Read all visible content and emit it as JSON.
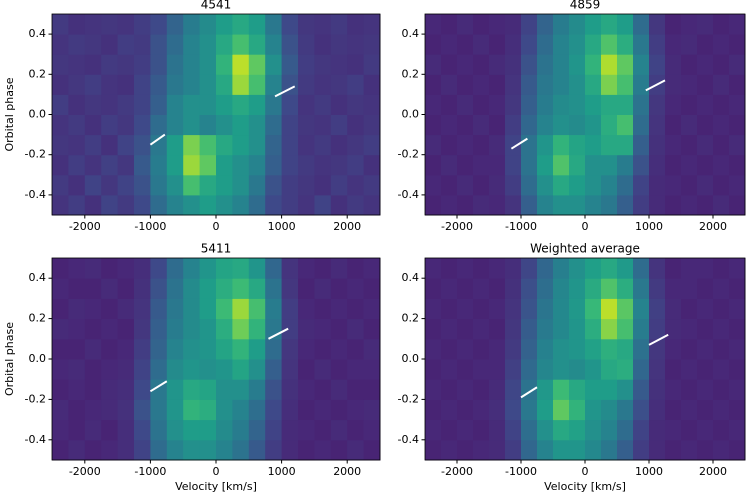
{
  "chart_data": [
    {
      "type": "heatmap",
      "title": "4541",
      "ylabel": "Orbital phase",
      "colormap": "viridis",
      "xlim": [
        -2500,
        2500
      ],
      "ylim": [
        -0.5,
        0.5
      ],
      "xticks": [
        -2000,
        -1000,
        0,
        1000,
        2000
      ],
      "yticks": [
        -0.4,
        -0.2,
        0.0,
        0.2,
        0.4
      ],
      "z": [
        [
          0.15,
          0.18,
          0.14,
          0.2,
          0.17,
          0.22,
          0.35,
          0.45,
          0.5,
          0.55,
          0.5,
          0.45,
          0.35,
          0.22,
          0.18,
          0.15,
          0.2,
          0.14,
          0.17,
          0.15
        ],
        [
          0.17,
          0.14,
          0.2,
          0.16,
          0.2,
          0.25,
          0.4,
          0.5,
          0.7,
          0.6,
          0.55,
          0.5,
          0.4,
          0.25,
          0.18,
          0.16,
          0.14,
          0.18,
          0.15,
          0.17
        ],
        [
          0.14,
          0.18,
          0.15,
          0.19,
          0.16,
          0.28,
          0.42,
          0.55,
          0.85,
          0.75,
          0.55,
          0.5,
          0.45,
          0.3,
          0.2,
          0.17,
          0.15,
          0.16,
          0.18,
          0.14
        ],
        [
          0.16,
          0.15,
          0.18,
          0.14,
          0.2,
          0.25,
          0.4,
          0.55,
          0.8,
          0.7,
          0.6,
          0.55,
          0.5,
          0.32,
          0.2,
          0.15,
          0.17,
          0.14,
          0.16,
          0.18
        ],
        [
          0.15,
          0.17,
          0.14,
          0.18,
          0.16,
          0.22,
          0.35,
          0.45,
          0.5,
          0.45,
          0.5,
          0.55,
          0.5,
          0.35,
          0.2,
          0.16,
          0.15,
          0.18,
          0.14,
          0.16
        ],
        [
          0.18,
          0.14,
          0.16,
          0.15,
          0.17,
          0.2,
          0.3,
          0.45,
          0.5,
          0.5,
          0.55,
          0.6,
          0.55,
          0.4,
          0.22,
          0.15,
          0.17,
          0.14,
          0.16,
          0.15
        ],
        [
          0.14,
          0.16,
          0.18,
          0.15,
          0.14,
          0.2,
          0.28,
          0.4,
          0.45,
          0.5,
          0.6,
          0.85,
          0.7,
          0.45,
          0.25,
          0.17,
          0.15,
          0.16,
          0.18,
          0.14
        ],
        [
          0.16,
          0.15,
          0.14,
          0.17,
          0.16,
          0.18,
          0.25,
          0.38,
          0.45,
          0.5,
          0.65,
          0.9,
          0.75,
          0.5,
          0.28,
          0.18,
          0.16,
          0.15,
          0.14,
          0.17
        ],
        [
          0.15,
          0.17,
          0.16,
          0.14,
          0.18,
          0.17,
          0.25,
          0.35,
          0.45,
          0.5,
          0.6,
          0.7,
          0.6,
          0.45,
          0.25,
          0.17,
          0.14,
          0.16,
          0.15,
          0.16
        ],
        [
          0.17,
          0.14,
          0.15,
          0.16,
          0.15,
          0.18,
          0.22,
          0.32,
          0.42,
          0.48,
          0.55,
          0.6,
          0.55,
          0.4,
          0.22,
          0.16,
          0.15,
          0.17,
          0.14,
          0.15
        ]
      ],
      "annotation_lines": [
        {
          "x": [
            -1000,
            -780
          ],
          "y": [
            -0.15,
            -0.1
          ]
        },
        {
          "x": [
            900,
            1200
          ],
          "y": [
            0.09,
            0.14
          ]
        }
      ]
    },
    {
      "type": "heatmap",
      "title": "4859",
      "colormap": "viridis",
      "xlim": [
        -2500,
        2500
      ],
      "ylim": [
        -0.5,
        0.5
      ],
      "xticks": [
        -2000,
        -1000,
        0,
        1000,
        2000
      ],
      "yticks": [
        -0.4,
        -0.2,
        0.0,
        0.2,
        0.4
      ],
      "z": [
        [
          0.1,
          0.11,
          0.1,
          0.12,
          0.11,
          0.15,
          0.3,
          0.45,
          0.5,
          0.5,
          0.45,
          0.4,
          0.3,
          0.18,
          0.12,
          0.1,
          0.11,
          0.1,
          0.12,
          0.1
        ],
        [
          0.11,
          0.1,
          0.12,
          0.1,
          0.12,
          0.18,
          0.35,
          0.5,
          0.6,
          0.55,
          0.5,
          0.45,
          0.35,
          0.2,
          0.12,
          0.11,
          0.1,
          0.12,
          0.1,
          0.11
        ],
        [
          0.1,
          0.12,
          0.1,
          0.11,
          0.11,
          0.2,
          0.38,
          0.55,
          0.72,
          0.6,
          0.5,
          0.5,
          0.42,
          0.25,
          0.13,
          0.1,
          0.11,
          0.1,
          0.11,
          0.1
        ],
        [
          0.12,
          0.1,
          0.11,
          0.1,
          0.12,
          0.2,
          0.38,
          0.52,
          0.65,
          0.58,
          0.55,
          0.6,
          0.6,
          0.3,
          0.14,
          0.11,
          0.1,
          0.12,
          0.1,
          0.12
        ],
        [
          0.1,
          0.11,
          0.1,
          0.12,
          0.1,
          0.18,
          0.33,
          0.45,
          0.5,
          0.48,
          0.52,
          0.62,
          0.7,
          0.35,
          0.15,
          0.1,
          0.12,
          0.1,
          0.11,
          0.1
        ],
        [
          0.11,
          0.1,
          0.12,
          0.1,
          0.11,
          0.16,
          0.3,
          0.42,
          0.48,
          0.5,
          0.55,
          0.6,
          0.6,
          0.38,
          0.16,
          0.11,
          0.1,
          0.11,
          0.1,
          0.11
        ],
        [
          0.1,
          0.12,
          0.1,
          0.11,
          0.1,
          0.15,
          0.28,
          0.4,
          0.45,
          0.5,
          0.6,
          0.8,
          0.7,
          0.42,
          0.18,
          0.12,
          0.11,
          0.1,
          0.12,
          0.1
        ],
        [
          0.12,
          0.1,
          0.11,
          0.1,
          0.12,
          0.14,
          0.25,
          0.38,
          0.45,
          0.52,
          0.65,
          0.88,
          0.75,
          0.45,
          0.2,
          0.12,
          0.1,
          0.11,
          0.1,
          0.12
        ],
        [
          0.1,
          0.11,
          0.1,
          0.12,
          0.1,
          0.13,
          0.22,
          0.35,
          0.45,
          0.5,
          0.6,
          0.72,
          0.62,
          0.4,
          0.18,
          0.11,
          0.12,
          0.1,
          0.11,
          0.1
        ],
        [
          0.11,
          0.1,
          0.12,
          0.1,
          0.11,
          0.12,
          0.2,
          0.32,
          0.42,
          0.48,
          0.55,
          0.6,
          0.55,
          0.35,
          0.16,
          0.1,
          0.11,
          0.12,
          0.1,
          0.11
        ]
      ],
      "annotation_lines": [
        {
          "x": [
            -1150,
            -900
          ],
          "y": [
            -0.17,
            -0.12
          ]
        },
        {
          "x": [
            950,
            1250
          ],
          "y": [
            0.12,
            0.17
          ]
        }
      ]
    },
    {
      "type": "heatmap",
      "title": "5411",
      "xlabel": "Velocity [km/s]",
      "ylabel": "Orbital phase",
      "colormap": "viridis",
      "xlim": [
        -2500,
        2500
      ],
      "ylim": [
        -0.5,
        0.5
      ],
      "xticks": [
        -2000,
        -1000,
        0,
        1000,
        2000
      ],
      "yticks": [
        -0.4,
        -0.2,
        0.0,
        0.2,
        0.4
      ],
      "z": [
        [
          0.1,
          0.12,
          0.1,
          0.11,
          0.13,
          0.2,
          0.35,
          0.45,
          0.5,
          0.5,
          0.45,
          0.38,
          0.28,
          0.18,
          0.12,
          0.1,
          0.11,
          0.1,
          0.12,
          0.1
        ],
        [
          0.11,
          0.1,
          0.12,
          0.1,
          0.13,
          0.22,
          0.38,
          0.5,
          0.55,
          0.55,
          0.48,
          0.42,
          0.32,
          0.2,
          0.12,
          0.11,
          0.1,
          0.12,
          0.1,
          0.11
        ],
        [
          0.12,
          0.1,
          0.11,
          0.12,
          0.14,
          0.25,
          0.4,
          0.52,
          0.65,
          0.62,
          0.5,
          0.45,
          0.36,
          0.22,
          0.13,
          0.1,
          0.11,
          0.1,
          0.11,
          0.12
        ],
        [
          0.1,
          0.11,
          0.1,
          0.12,
          0.13,
          0.22,
          0.4,
          0.52,
          0.6,
          0.58,
          0.5,
          0.5,
          0.42,
          0.25,
          0.14,
          0.11,
          0.1,
          0.12,
          0.1,
          0.1
        ],
        [
          0.11,
          0.12,
          0.1,
          0.11,
          0.12,
          0.2,
          0.35,
          0.48,
          0.52,
          0.5,
          0.52,
          0.58,
          0.5,
          0.3,
          0.15,
          0.1,
          0.12,
          0.1,
          0.11,
          0.11
        ],
        [
          0.1,
          0.1,
          0.12,
          0.1,
          0.11,
          0.18,
          0.32,
          0.45,
          0.5,
          0.52,
          0.58,
          0.65,
          0.55,
          0.35,
          0.16,
          0.11,
          0.1,
          0.11,
          0.1,
          0.12
        ],
        [
          0.12,
          0.11,
          0.1,
          0.11,
          0.1,
          0.16,
          0.3,
          0.42,
          0.48,
          0.52,
          0.62,
          0.78,
          0.65,
          0.4,
          0.18,
          0.12,
          0.11,
          0.1,
          0.12,
          0.1
        ],
        [
          0.1,
          0.12,
          0.11,
          0.1,
          0.12,
          0.15,
          0.28,
          0.4,
          0.48,
          0.55,
          0.68,
          0.85,
          0.7,
          0.42,
          0.18,
          0.11,
          0.1,
          0.11,
          0.1,
          0.11
        ],
        [
          0.11,
          0.1,
          0.1,
          0.12,
          0.1,
          0.14,
          0.25,
          0.38,
          0.48,
          0.55,
          0.62,
          0.68,
          0.6,
          0.38,
          0.16,
          0.1,
          0.12,
          0.1,
          0.11,
          0.1
        ],
        [
          0.1,
          0.11,
          0.12,
          0.1,
          0.11,
          0.13,
          0.22,
          0.35,
          0.45,
          0.52,
          0.58,
          0.6,
          0.52,
          0.33,
          0.15,
          0.11,
          0.1,
          0.12,
          0.1,
          0.11
        ]
      ],
      "annotation_lines": [
        {
          "x": [
            -1000,
            -750
          ],
          "y": [
            -0.16,
            -0.11
          ]
        },
        {
          "x": [
            800,
            1100
          ],
          "y": [
            0.1,
            0.15
          ]
        }
      ]
    },
    {
      "type": "heatmap",
      "title": "Weighted average",
      "xlabel": "Velocity [km/s]",
      "colormap": "viridis",
      "xlim": [
        -2500,
        2500
      ],
      "ylim": [
        -0.5,
        0.5
      ],
      "xticks": [
        -2000,
        -1000,
        0,
        1000,
        2000
      ],
      "yticks": [
        -0.4,
        -0.2,
        0.0,
        0.2,
        0.4
      ],
      "z": [
        [
          0.1,
          0.11,
          0.1,
          0.11,
          0.12,
          0.18,
          0.33,
          0.45,
          0.52,
          0.52,
          0.47,
          0.4,
          0.3,
          0.18,
          0.12,
          0.1,
          0.11,
          0.1,
          0.11,
          0.1
        ],
        [
          0.11,
          0.1,
          0.11,
          0.1,
          0.12,
          0.2,
          0.36,
          0.5,
          0.6,
          0.57,
          0.5,
          0.45,
          0.35,
          0.2,
          0.12,
          0.11,
          0.1,
          0.11,
          0.1,
          0.11
        ],
        [
          0.1,
          0.11,
          0.1,
          0.11,
          0.13,
          0.22,
          0.4,
          0.55,
          0.75,
          0.65,
          0.52,
          0.48,
          0.4,
          0.24,
          0.13,
          0.1,
          0.11,
          0.1,
          0.11,
          0.1
        ],
        [
          0.11,
          0.1,
          0.11,
          0.1,
          0.12,
          0.21,
          0.38,
          0.53,
          0.68,
          0.6,
          0.55,
          0.55,
          0.5,
          0.28,
          0.14,
          0.11,
          0.1,
          0.11,
          0.1,
          0.11
        ],
        [
          0.1,
          0.11,
          0.1,
          0.11,
          0.11,
          0.19,
          0.34,
          0.46,
          0.5,
          0.48,
          0.52,
          0.6,
          0.62,
          0.33,
          0.15,
          0.1,
          0.11,
          0.1,
          0.11,
          0.1
        ],
        [
          0.11,
          0.1,
          0.11,
          0.1,
          0.11,
          0.17,
          0.31,
          0.44,
          0.5,
          0.52,
          0.57,
          0.63,
          0.6,
          0.37,
          0.16,
          0.11,
          0.1,
          0.11,
          0.1,
          0.11
        ],
        [
          0.1,
          0.11,
          0.1,
          0.11,
          0.1,
          0.16,
          0.29,
          0.41,
          0.47,
          0.52,
          0.62,
          0.82,
          0.7,
          0.42,
          0.18,
          0.12,
          0.11,
          0.1,
          0.11,
          0.1
        ],
        [
          0.11,
          0.1,
          0.11,
          0.1,
          0.11,
          0.15,
          0.26,
          0.39,
          0.47,
          0.53,
          0.67,
          0.9,
          0.74,
          0.45,
          0.19,
          0.12,
          0.1,
          0.11,
          0.1,
          0.11
        ],
        [
          0.1,
          0.11,
          0.1,
          0.11,
          0.1,
          0.14,
          0.24,
          0.36,
          0.46,
          0.52,
          0.61,
          0.72,
          0.62,
          0.4,
          0.17,
          0.11,
          0.11,
          0.1,
          0.11,
          0.1
        ],
        [
          0.11,
          0.1,
          0.11,
          0.1,
          0.11,
          0.13,
          0.21,
          0.33,
          0.43,
          0.5,
          0.56,
          0.6,
          0.54,
          0.35,
          0.15,
          0.1,
          0.11,
          0.11,
          0.1,
          0.11
        ]
      ],
      "annotation_lines": [
        {
          "x": [
            -1000,
            -750
          ],
          "y": [
            -0.19,
            -0.14
          ]
        },
        {
          "x": [
            1000,
            1300
          ],
          "y": [
            0.07,
            0.12
          ]
        }
      ]
    }
  ]
}
